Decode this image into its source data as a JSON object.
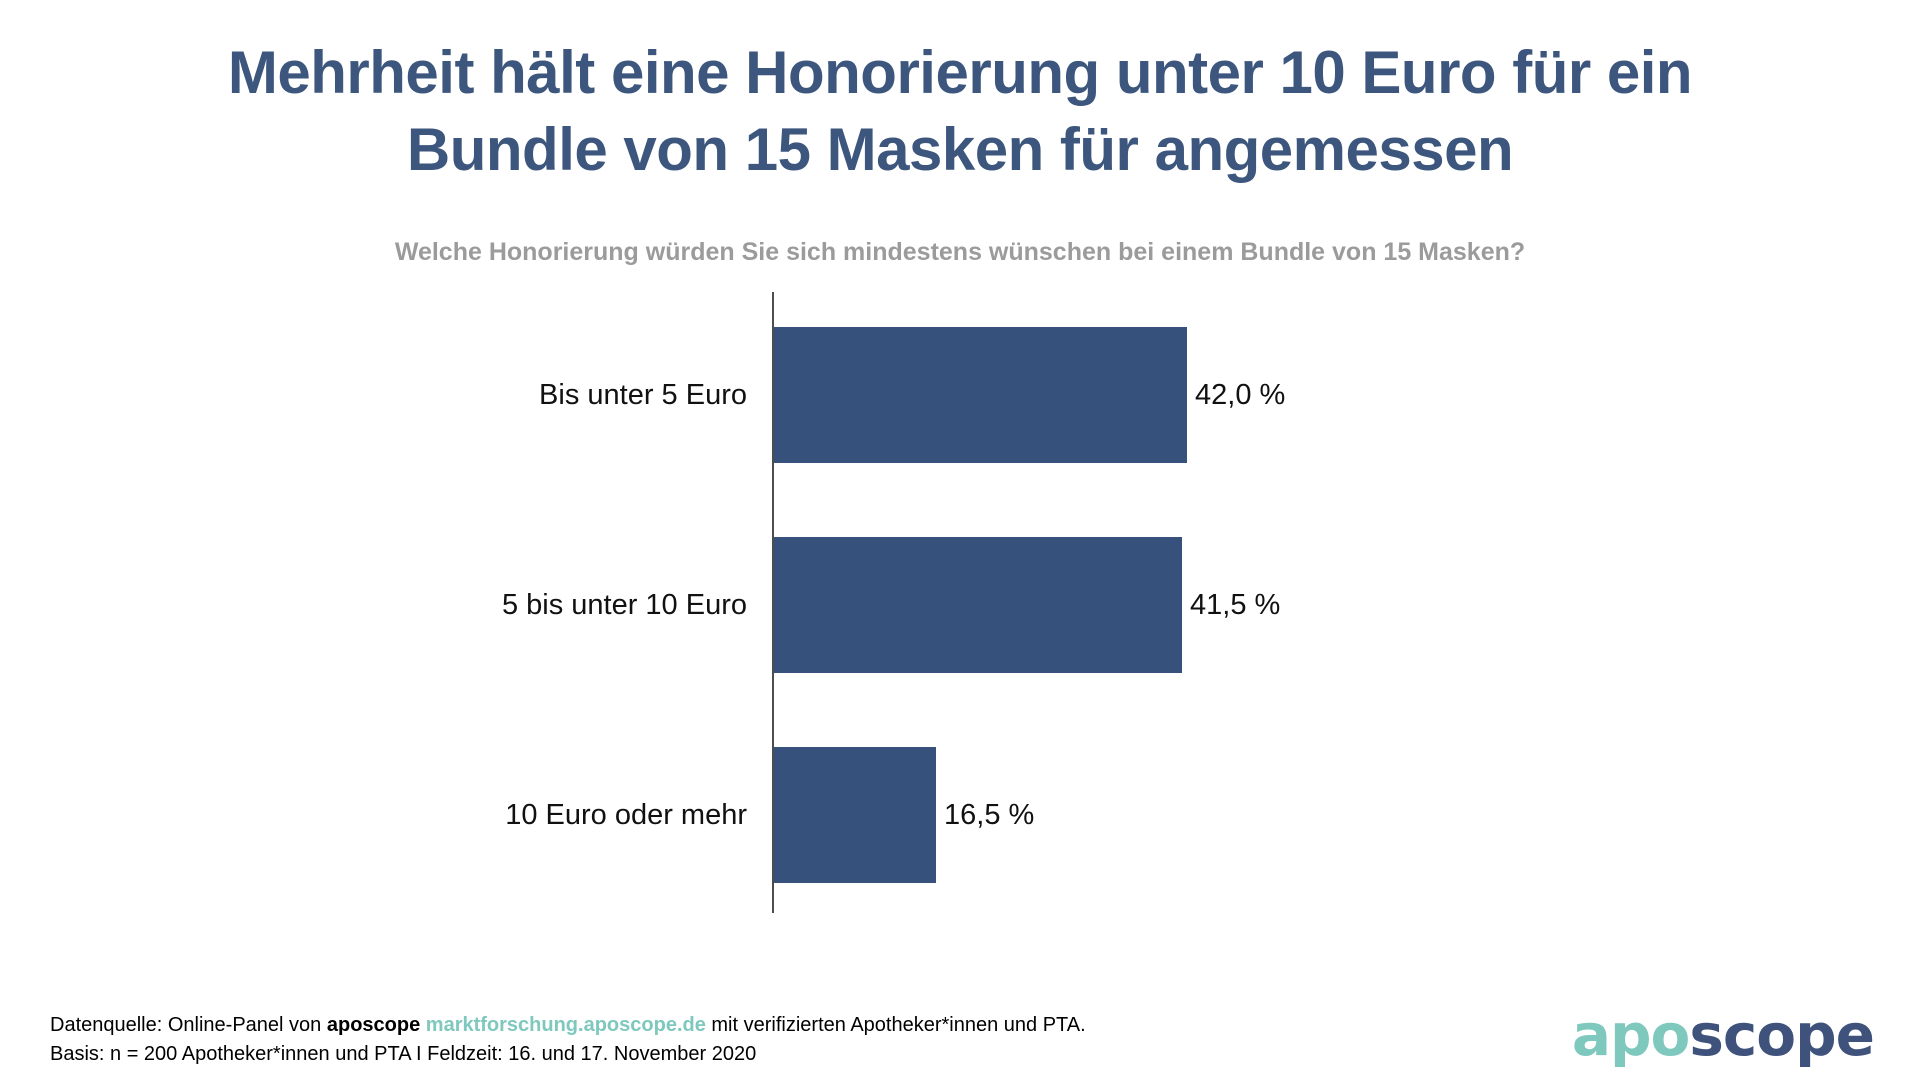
{
  "title": {
    "line1": "Mehrheit hält eine Honorierung unter 10 Euro für ein",
    "line2": "Bundle von 15 Masken für angemessen"
  },
  "chart_data": {
    "type": "bar",
    "orientation": "horizontal",
    "title": "Mehrheit hält eine Honorierung unter 10 Euro für ein Bundle von 15 Masken für angemessen",
    "subtitle": "Welche Honorierung würden Sie sich mindestens wünschen bei einem Bundle von 15 Masken?",
    "categories": [
      "Bis unter 5 Euro",
      "5 bis unter 10 Euro",
      "10 Euro oder mehr"
    ],
    "values": [
      42.0,
      41.5,
      16.5
    ],
    "value_labels": [
      "42,0 %",
      "41,5 %",
      "16,5 %"
    ],
    "unit": "%",
    "xlim": [
      0,
      50
    ],
    "grid": false,
    "legend": false,
    "bar_color": "#36517B",
    "title_color": "#3C567D",
    "subtitle_color": "#9B9B9B"
  },
  "footer": {
    "line1": {
      "prefix": "Datenquelle: Online-Panel von ",
      "brand": "aposcope",
      "separator": " ",
      "link": "marktforschung.aposcope.de",
      "suffix": " mit verifizierten Apotheker*innen und PTA."
    },
    "line2": "Basis: n = 200 Apotheker*innen und PTA I Feldzeit: 16. und 17. November 2020"
  },
  "logo": {
    "part1": "apo",
    "part2": "scope",
    "teal": "#7EC8BE",
    "navy": "#3E527B"
  }
}
